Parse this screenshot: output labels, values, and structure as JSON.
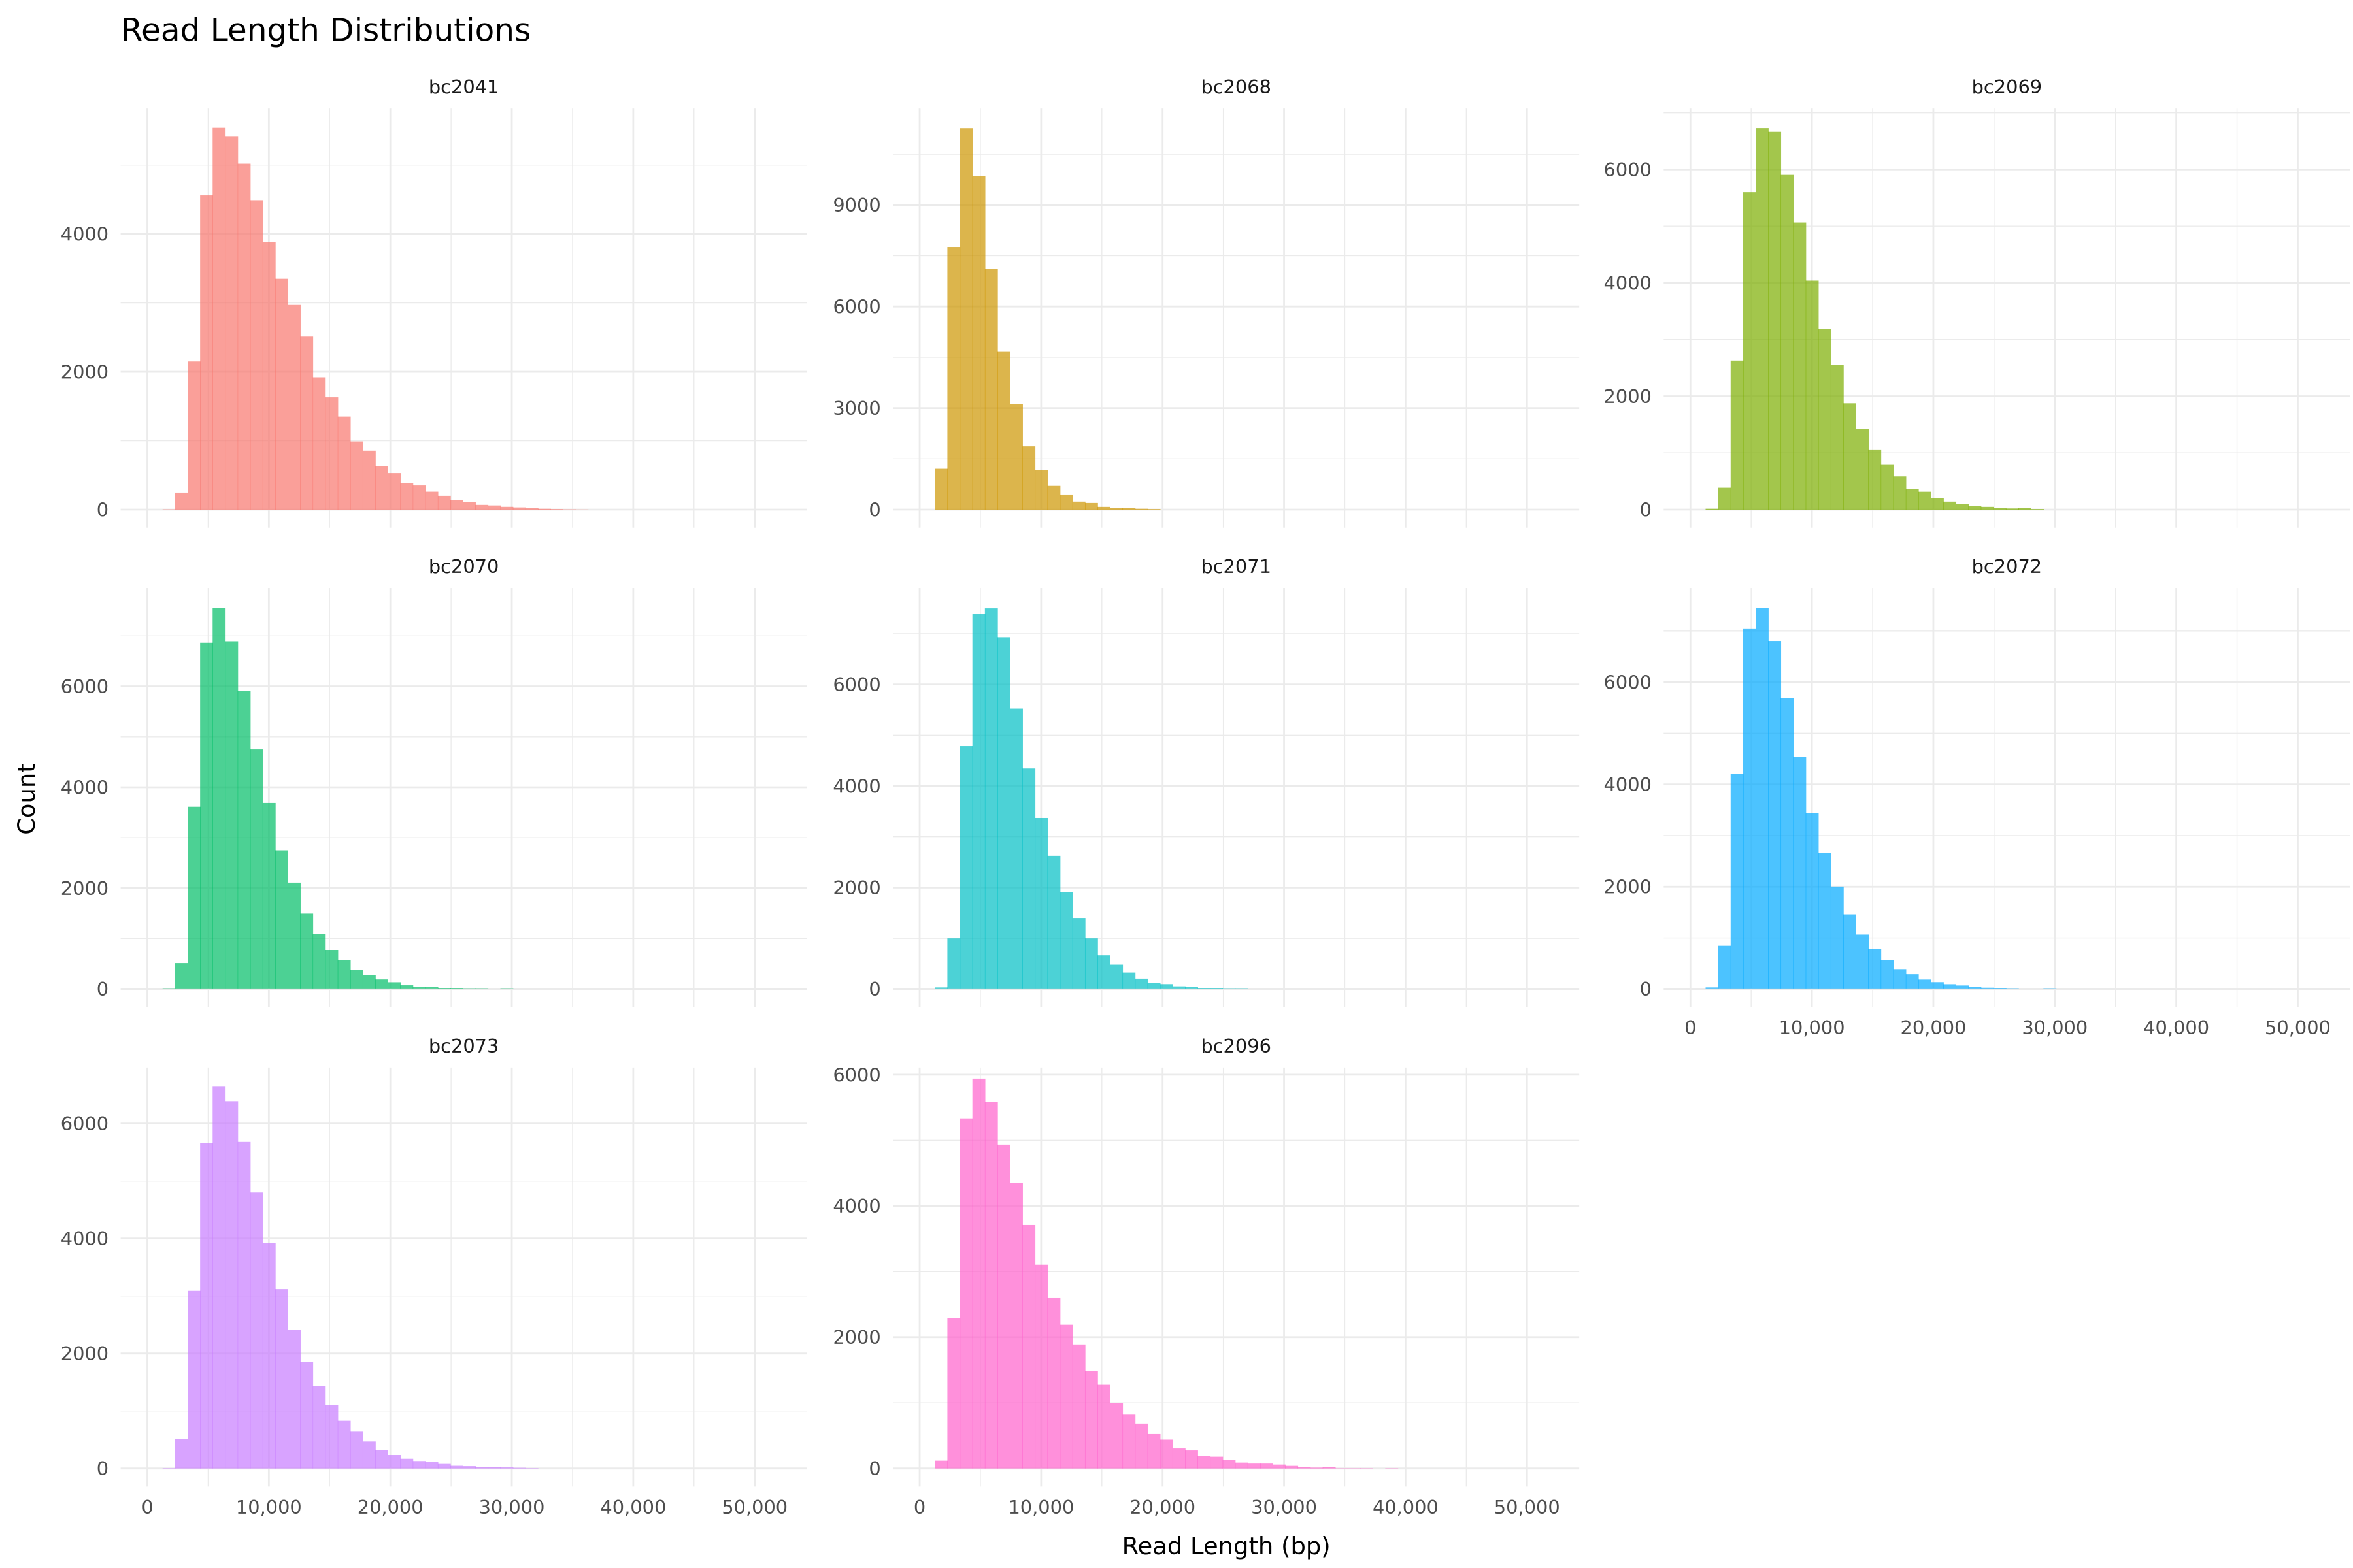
{
  "chart_data": {
    "type": "bar",
    "subtype": "faceted-histogram",
    "title": "Read Length Distributions",
    "xlabel": "Read Length (bp)",
    "ylabel": "Count",
    "xlim": [
      -2200,
      54300
    ],
    "x_ticks": [
      0,
      10000,
      20000,
      30000,
      40000,
      50000
    ],
    "x_tick_labels": [
      "0",
      "10,000",
      "20,000",
      "30,000",
      "40,000",
      "50,000"
    ],
    "bin_start": 1250,
    "bin_width": 1030,
    "grid": true,
    "legend": "none",
    "panels": [
      {
        "name": "bc2041",
        "color": "#F8766D",
        "ylim": [
          0,
          5820
        ],
        "y_ticks": [
          0,
          2000,
          4000
        ],
        "y_tick_labels": [
          "0",
          "2000",
          "4000"
        ],
        "values": [
          4,
          247,
          2150,
          4560,
          5540,
          5420,
          5020,
          4490,
          3880,
          3350,
          2970,
          2510,
          1920,
          1630,
          1350,
          990,
          855,
          635,
          530,
          385,
          350,
          260,
          200,
          135,
          107,
          68,
          60,
          40,
          32,
          20,
          12,
          8,
          4,
          2
        ]
      },
      {
        "name": "bc2068",
        "color": "#CD9600",
        "ylim": [
          0,
          11850
        ],
        "y_ticks": [
          0,
          3000,
          6000,
          9000
        ],
        "y_tick_labels": [
          "0",
          "3000",
          "6000",
          "9000"
        ],
        "values": [
          1205,
          7760,
          11270,
          9850,
          7115,
          4660,
          3120,
          1870,
          1170,
          700,
          445,
          235,
          195,
          80,
          55,
          40,
          25,
          16
        ]
      },
      {
        "name": "bc2069",
        "color": "#7CAE00",
        "ylim": [
          0,
          7075
        ],
        "y_ticks": [
          0,
          2000,
          4000,
          6000
        ],
        "y_tick_labels": [
          "0",
          "2000",
          "4000",
          "6000"
        ],
        "values": [
          15,
          385,
          2630,
          5600,
          6730,
          6665,
          5905,
          5065,
          4040,
          3190,
          2550,
          1875,
          1420,
          1050,
          800,
          585,
          360,
          315,
          200,
          140,
          97,
          58,
          48,
          30,
          20,
          30,
          10
        ]
      },
      {
        "name": "bc2070",
        "color": "#00BE67",
        "ylim": [
          0,
          7950
        ],
        "y_ticks": [
          0,
          2000,
          4000,
          6000
        ],
        "y_tick_labels": [
          "0",
          "2000",
          "4000",
          "6000"
        ],
        "values": [
          5,
          515,
          3615,
          6865,
          7550,
          6895,
          5910,
          4750,
          3690,
          2750,
          2110,
          1495,
          1090,
          775,
          570,
          385,
          280,
          190,
          135,
          75,
          43,
          38,
          16,
          16,
          5,
          5,
          0,
          5
        ]
      },
      {
        "name": "bc2071",
        "color": "#00BFC4",
        "ylim": [
          0,
          7900
        ],
        "y_ticks": [
          0,
          2000,
          4000,
          6000
        ],
        "y_tick_labels": [
          "0",
          "2000",
          "4000",
          "6000"
        ],
        "values": [
          32,
          1000,
          4785,
          7385,
          7500,
          6930,
          5525,
          4345,
          3370,
          2625,
          1915,
          1400,
          1000,
          665,
          480,
          325,
          205,
          125,
          97,
          54,
          38,
          16,
          11,
          5,
          5
        ]
      },
      {
        "name": "bc2072",
        "color": "#00A9FF",
        "ylim": [
          0,
          7840
        ],
        "y_ticks": [
          0,
          2000,
          4000,
          6000
        ],
        "y_tick_labels": [
          "0",
          "2000",
          "4000",
          "6000"
        ],
        "values": [
          32,
          845,
          4210,
          7050,
          7450,
          6805,
          5690,
          4535,
          3445,
          2665,
          2005,
          1460,
          1065,
          790,
          570,
          390,
          290,
          185,
          135,
          95,
          70,
          43,
          27,
          16,
          5,
          0,
          0,
          5
        ]
      },
      {
        "name": "bc2073",
        "color": "#C77CFF",
        "ylim": [
          0,
          6975
        ],
        "y_ticks": [
          0,
          2000,
          4000,
          6000
        ],
        "y_tick_labels": [
          "0",
          "2000",
          "4000",
          "6000"
        ],
        "values": [
          6,
          510,
          3090,
          5660,
          6640,
          6390,
          5680,
          4800,
          3920,
          3120,
          2410,
          1850,
          1430,
          1100,
          830,
          640,
          470,
          320,
          235,
          170,
          130,
          110,
          80,
          47,
          41,
          30,
          23,
          18,
          12,
          6
        ]
      },
      {
        "name": "bc2096",
        "color": "#FF61CC",
        "ylim": [
          0,
          6110
        ],
        "y_ticks": [
          0,
          2000,
          4000,
          6000
        ],
        "y_tick_labels": [
          "0",
          "2000",
          "4000",
          "6000"
        ],
        "values": [
          120,
          2290,
          5335,
          5940,
          5590,
          4935,
          4355,
          3710,
          3105,
          2605,
          2190,
          1890,
          1490,
          1275,
          995,
          820,
          685,
          525,
          440,
          305,
          275,
          190,
          180,
          130,
          90,
          75,
          75,
          60,
          40,
          25,
          13,
          25,
          4,
          4,
          4,
          0,
          4
        ]
      }
    ]
  }
}
